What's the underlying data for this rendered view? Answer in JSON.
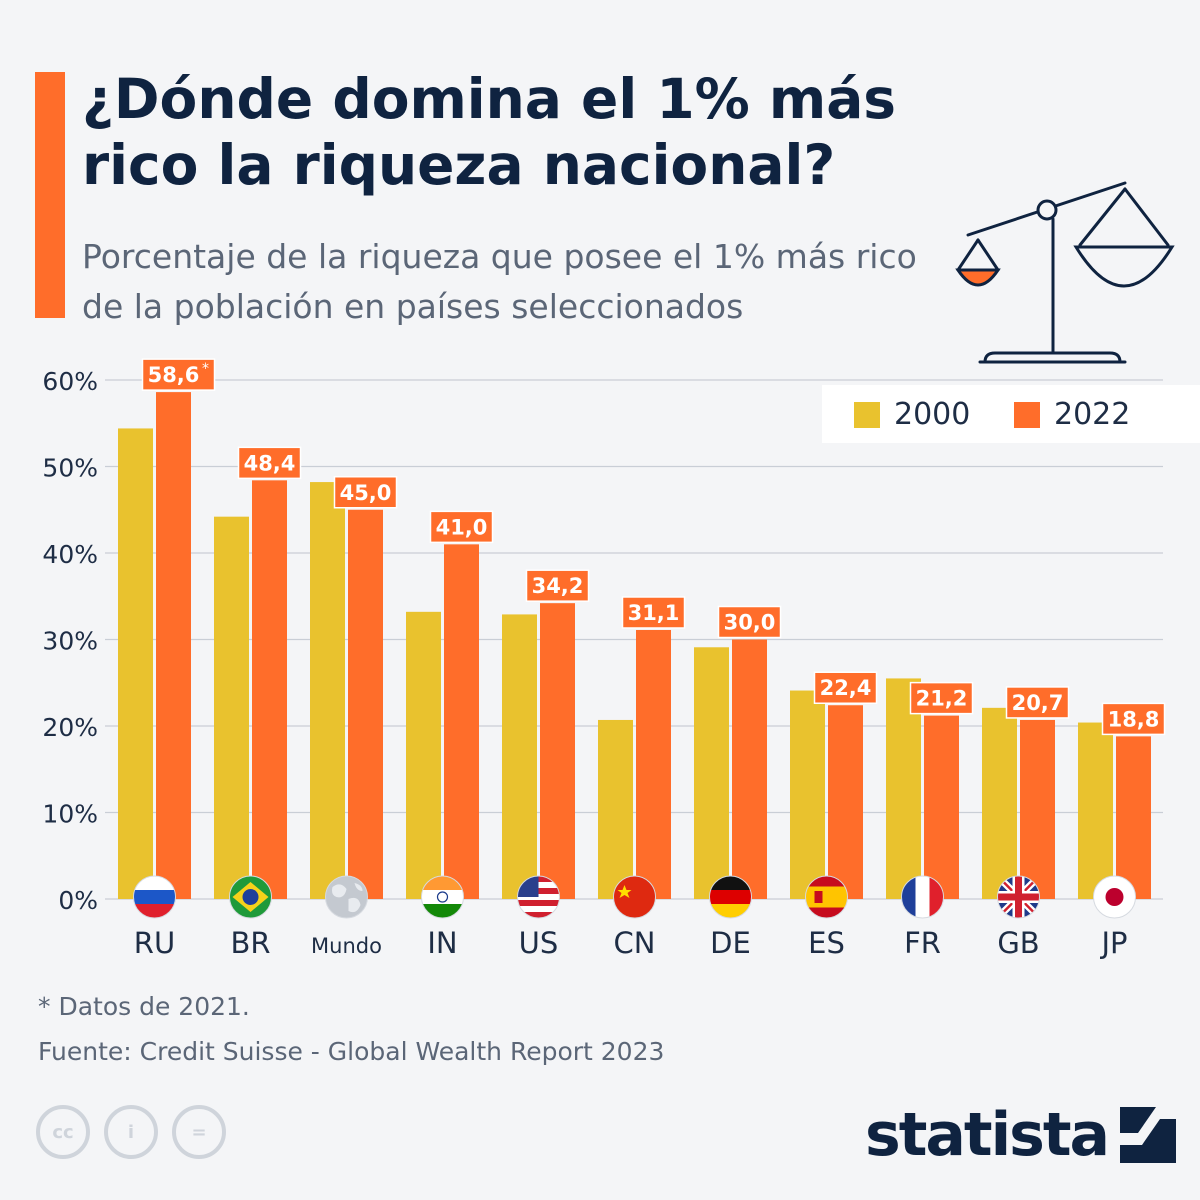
{
  "header": {
    "title": "¿Dónde domina el 1% más rico la riqueza nacional?",
    "subtitle": "Porcentaje de la riqueza que posee el 1% más rico de la población en países seleccionados"
  },
  "colors": {
    "series_2000": "#e9c22e",
    "series_2022": "#ff6d2a",
    "accent": "#ff6d2a",
    "text_dark": "#0f2340"
  },
  "legend": {
    "items": [
      "2000",
      "2022"
    ]
  },
  "chart_data": {
    "type": "bar",
    "categories": [
      "RU",
      "BR",
      "Mundo",
      "IN",
      "US",
      "CN",
      "DE",
      "ES",
      "FR",
      "GB",
      "JP"
    ],
    "series": [
      {
        "name": "2000",
        "values": [
          54.4,
          44.2,
          48.2,
          33.2,
          32.9,
          20.7,
          29.1,
          24.1,
          25.5,
          22.1,
          20.4
        ]
      },
      {
        "name": "2022",
        "values": [
          58.6,
          48.4,
          45.0,
          41.0,
          34.2,
          31.1,
          30.0,
          22.4,
          21.2,
          20.7,
          18.8
        ],
        "labels": [
          "58,6*",
          "48,4",
          "45,0",
          "41,0",
          "34,2",
          "31,1",
          "30,0",
          "22,4",
          "21,2",
          "20,7",
          "18,8"
        ]
      }
    ],
    "flag_icons": [
      "russia-flag-icon",
      "brazil-flag-icon",
      "world-globe-icon",
      "india-flag-icon",
      "usa-flag-icon",
      "china-flag-icon",
      "germany-flag-icon",
      "spain-flag-icon",
      "france-flag-icon",
      "uk-flag-icon",
      "japan-flag-icon"
    ],
    "ylim": [
      0,
      60
    ],
    "yticks": [
      "0%",
      "10%",
      "20%",
      "30%",
      "40%",
      "50%",
      "60%"
    ],
    "grid": true,
    "legend_position": "top-right"
  },
  "footer": {
    "note": "* Datos de 2021.",
    "source": "Fuente: Credit Suisse - Global Wealth Report 2023",
    "brand": "statista",
    "license_icons": [
      "cc",
      "i",
      "="
    ]
  }
}
